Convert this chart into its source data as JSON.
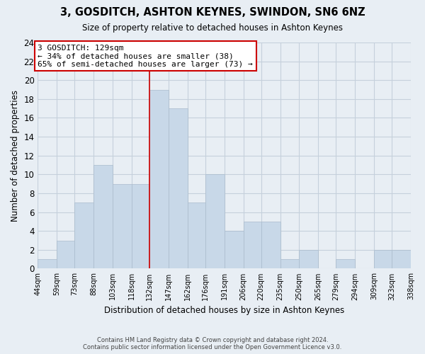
{
  "title": "3, GOSDITCH, ASHTON KEYNES, SWINDON, SN6 6NZ",
  "subtitle": "Size of property relative to detached houses in Ashton Keynes",
  "xlabel": "Distribution of detached houses by size in Ashton Keynes",
  "ylabel": "Number of detached properties",
  "bin_edges": [
    44,
    59,
    73,
    88,
    103,
    118,
    132,
    147,
    162,
    176,
    191,
    206,
    220,
    235,
    250,
    265,
    279,
    294,
    309,
    323,
    338
  ],
  "bin_labels": [
    "44sqm",
    "59sqm",
    "73sqm",
    "88sqm",
    "103sqm",
    "118sqm",
    "132sqm",
    "147sqm",
    "162sqm",
    "176sqm",
    "191sqm",
    "206sqm",
    "220sqm",
    "235sqm",
    "250sqm",
    "265sqm",
    "279sqm",
    "294sqm",
    "309sqm",
    "323sqm",
    "338sqm"
  ],
  "counts": [
    1,
    3,
    7,
    11,
    9,
    9,
    19,
    17,
    7,
    10,
    4,
    5,
    5,
    1,
    2,
    0,
    1,
    0,
    2,
    2
  ],
  "bar_color": "#c8d8e8",
  "bar_edge_color": "#aabbcc",
  "vline_x": 132,
  "vline_color": "#cc0000",
  "annotation_title": "3 GOSDITCH: 129sqm",
  "annotation_line1": "← 34% of detached houses are smaller (38)",
  "annotation_line2": "65% of semi-detached houses are larger (73) →",
  "annotation_box_color": "#ffffff",
  "annotation_box_edge": "#cc0000",
  "ylim": [
    0,
    24
  ],
  "yticks": [
    0,
    2,
    4,
    6,
    8,
    10,
    12,
    14,
    16,
    18,
    20,
    22,
    24
  ],
  "footer_line1": "Contains HM Land Registry data © Crown copyright and database right 2024.",
  "footer_line2": "Contains public sector information licensed under the Open Government Licence v3.0.",
  "background_color": "#e8eef4",
  "plot_bg_color": "#e8eef4",
  "grid_color": "#c5d0dc"
}
